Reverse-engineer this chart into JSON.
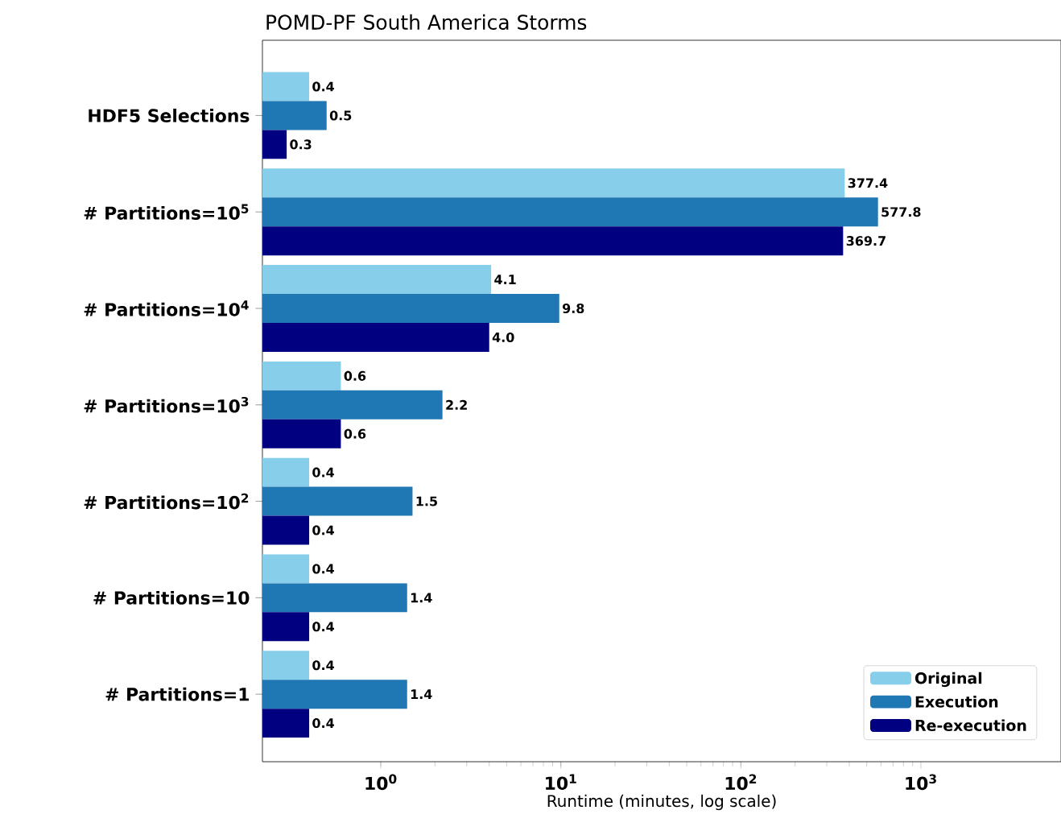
{
  "chart_data": {
    "type": "bar",
    "orientation": "horizontal",
    "title": "POMD-PF South America Storms",
    "xlabel": "Runtime (minutes, log scale)",
    "categories": [
      "HDF5 Selections",
      "# Partitions=10$^{5}$",
      "# Partitions=10$^{4}$",
      "# Partitions=10$^{3}$",
      "# Partitions=10$^{2}$",
      "# Partitions=10",
      "# Partitions=1"
    ],
    "series": [
      {
        "name": "Original",
        "color": "#87ceeb",
        "values": [
          0.4,
          377.4,
          4.1,
          0.6,
          0.4,
          0.4,
          0.4
        ]
      },
      {
        "name": "Execution",
        "color": "#1f77b4",
        "values": [
          0.5,
          577.8,
          9.8,
          2.2,
          1.5,
          1.4,
          1.4
        ]
      },
      {
        "name": "Re-execution",
        "color": "#000080",
        "values": [
          0.3,
          369.7,
          4.0,
          0.6,
          0.4,
          0.4,
          0.4
        ],
        "value_labels": [
          "0.3",
          "369.7",
          "4.0",
          "0.6",
          "0.4",
          "0.4",
          "0.4"
        ]
      }
    ],
    "log": "x",
    "xlim": [
      0.22,
      6000
    ],
    "xticks": [
      {
        "value": 1,
        "label": "10$^{0}$"
      },
      {
        "value": 10,
        "label": "10$^{1}$"
      },
      {
        "value": 100,
        "label": "10$^{2}$"
      },
      {
        "value": 1000,
        "label": "10$^{3}$"
      }
    ],
    "data_labels": true,
    "legend": "bottom right",
    "grid": false
  }
}
